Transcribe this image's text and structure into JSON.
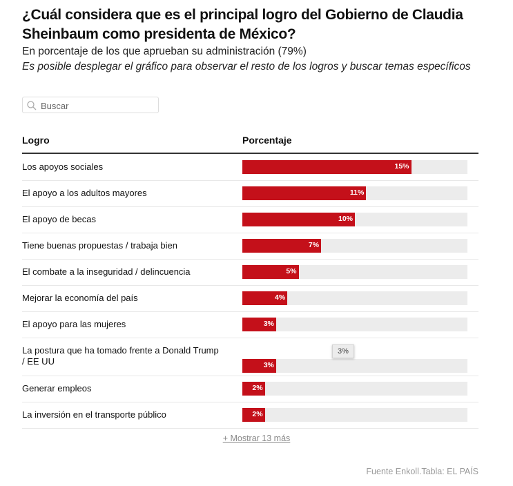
{
  "title": "¿Cuál considera que es el principal logro del Gobierno de Claudia Sheinbaum como presidenta de México?",
  "subtitle": "En porcentaje de los que aprueban su administración (79%)",
  "note": "Es posible desplegar el gráfico para observar el resto de los logros y buscar temas específicos",
  "search": {
    "placeholder": "Buscar"
  },
  "chart_data": {
    "type": "table",
    "columns": [
      "Logro",
      "Porcentaje"
    ],
    "bar_color": "#c4101a",
    "track_color": "#ececec",
    "scale_max": 20,
    "rows": [
      {
        "label": "Los apoyos sociales",
        "value": 15,
        "display": "15%"
      },
      {
        "label": "El apoyo a los adultos mayores",
        "value": 11,
        "display": "11%"
      },
      {
        "label": "El apoyo de becas",
        "value": 10,
        "display": "10%"
      },
      {
        "label": "Tiene buenas propuestas / trabaja bien",
        "value": 7,
        "display": "7%"
      },
      {
        "label": "El combate a la inseguridad / delincuencia",
        "value": 5,
        "display": "5%"
      },
      {
        "label": "Mejorar la economía del país",
        "value": 4,
        "display": "4%"
      },
      {
        "label": "El apoyo para las mujeres",
        "value": 3,
        "display": "3%"
      },
      {
        "label": "La postura que ha tomado frente a Donald Trump / EE UU",
        "value": 3,
        "display": "3%"
      },
      {
        "label": "Generar empleos",
        "value": 2,
        "display": "2%"
      },
      {
        "label": "La inversión en el transporte público",
        "value": 2,
        "display": "2%"
      }
    ],
    "tooltip": "3%"
  },
  "show_more": "+ Mostrar 13 más",
  "source": "Fuente Enkoll.Tabla: EL PAÍS"
}
